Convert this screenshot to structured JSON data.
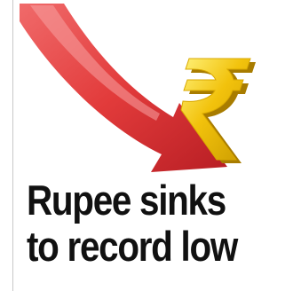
{
  "article": {
    "illustration": {
      "subject": "falling-arrow-with-rupee-symbol-icon",
      "colors": {
        "arrow": "#e23b3b",
        "arrow_dark": "#b81e24",
        "rupee_gold": "#f2c20c",
        "rupee_shadow": "#c99a00"
      }
    },
    "headline": {
      "line1": "Rupee sinks",
      "line2": "to record low",
      "color": "#111111"
    }
  }
}
